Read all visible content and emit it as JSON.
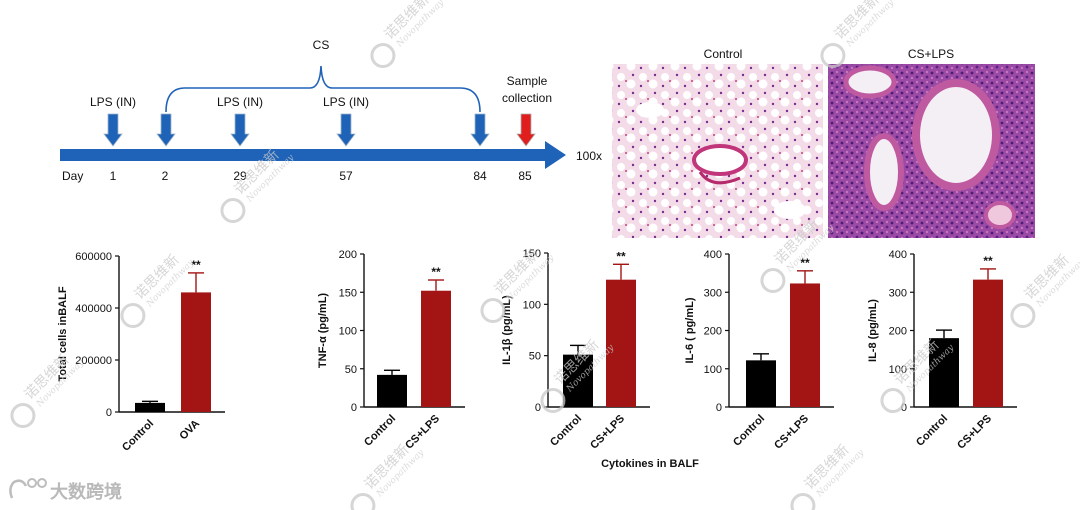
{
  "timeline": {
    "day_label": "Day",
    "days": [
      "1",
      "2",
      "29",
      "57",
      "84",
      "85"
    ],
    "cs_label": "CS",
    "lps_labels": [
      "LPS (IN)",
      "LPS (IN)",
      "LPS (IN)"
    ],
    "sample_label_line1": "Sample",
    "sample_label_line2": "collection",
    "arrow_color": "#1f63b8",
    "sample_color": "#e01e1e"
  },
  "histology": {
    "magnification": "100x",
    "panels": [
      {
        "title": "Control"
      },
      {
        "title": "CS+LPS"
      }
    ]
  },
  "chart_data": [
    {
      "type": "bar",
      "ylabel": "Total cells inBALF",
      "categories": [
        "Control",
        "OVA"
      ],
      "values": [
        35000,
        460000
      ],
      "errors": [
        6000,
        75000
      ],
      "ylim": [
        0,
        600000
      ],
      "yticks": [
        "0",
        "200000",
        "400000",
        "600000"
      ],
      "significance": [
        "",
        "**"
      ],
      "colors": [
        "#000000",
        "#a31515"
      ]
    },
    {
      "type": "bar",
      "ylabel": "TNF-α (pg/mL)",
      "categories": [
        "Control",
        "CS+LPS"
      ],
      "values": [
        42,
        152
      ],
      "errors": [
        6,
        14
      ],
      "ylim": [
        0,
        200
      ],
      "yticks": [
        "0",
        "50",
        "100",
        "150",
        "200"
      ],
      "significance": [
        "",
        "**"
      ],
      "colors": [
        "#000000",
        "#a31515"
      ]
    },
    {
      "type": "bar",
      "ylabel": "IL-1β (pg/mL)",
      "categories": [
        "Control",
        "CS+LPS"
      ],
      "values": [
        51,
        124
      ],
      "errors": [
        9,
        15
      ],
      "ylim": [
        0,
        150
      ],
      "yticks": [
        "0",
        "50",
        "100",
        "150"
      ],
      "significance": [
        "",
        "**"
      ],
      "colors": [
        "#000000",
        "#a31515"
      ]
    },
    {
      "type": "bar",
      "ylabel": "IL-6 ( pg/mL)",
      "categories": [
        "Control",
        "CS+LPS"
      ],
      "values": [
        122,
        323
      ],
      "errors": [
        17,
        33
      ],
      "ylim": [
        0,
        400
      ],
      "yticks": [
        "0",
        "100",
        "200",
        "300",
        "400"
      ],
      "significance": [
        "",
        "**"
      ],
      "colors": [
        "#000000",
        "#a31515"
      ]
    },
    {
      "type": "bar",
      "ylabel": "IL-8 (pg/mL)",
      "categories": [
        "Control",
        "CS+LPS"
      ],
      "values": [
        180,
        333
      ],
      "errors": [
        21,
        28
      ],
      "ylim": [
        0,
        400
      ],
      "yticks": [
        "0",
        "100",
        "200",
        "300",
        "400"
      ],
      "significance": [
        "",
        "**"
      ],
      "colors": [
        "#000000",
        "#a31515"
      ]
    }
  ],
  "cytokines_label": "Cytokines in BALF",
  "watermark": {
    "cn": "诺思维新",
    "en": "Novopathway"
  },
  "footer": {
    "brand": "大数跨境"
  }
}
